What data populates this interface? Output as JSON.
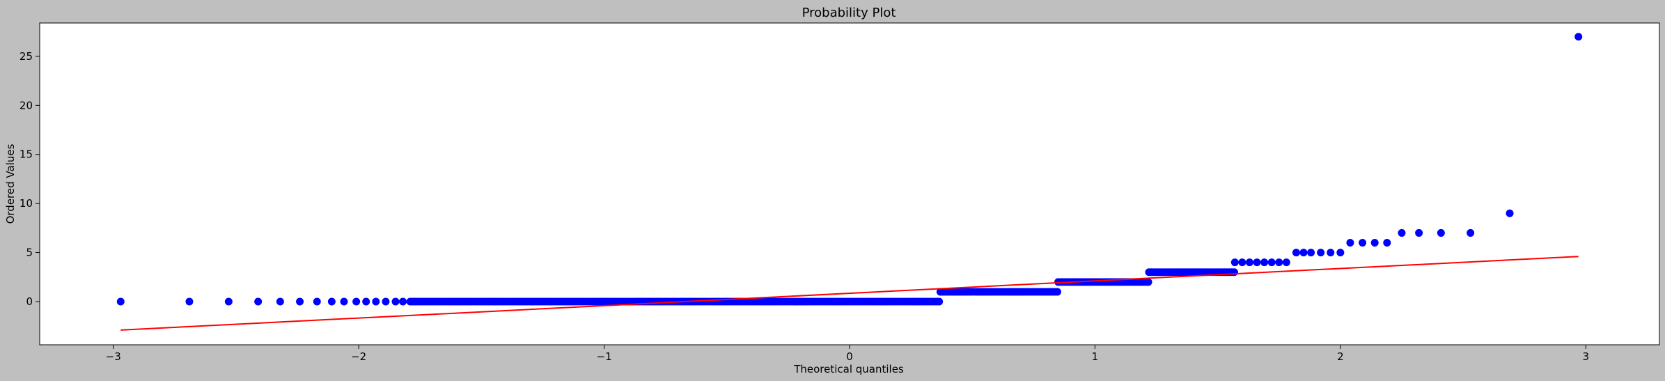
{
  "chart_data": {
    "type": "scatter",
    "title": "Probability Plot",
    "xlabel": "Theoretical quantiles",
    "ylabel": "Ordered Values",
    "xlim": [
      -3.3,
      3.3
    ],
    "ylim": [
      -4.4,
      28.4
    ],
    "x_ticks": [
      -3,
      -2,
      -1,
      0,
      1,
      2,
      3
    ],
    "y_ticks": [
      0,
      5,
      10,
      15,
      20,
      25
    ],
    "x_tick_labels": [
      "−3",
      "−2",
      "−1",
      "0",
      "1",
      "2",
      "3"
    ],
    "y_tick_labels": [
      "0",
      "5",
      "10",
      "15",
      "20",
      "25"
    ],
    "grid": false,
    "colors": {
      "points": "#0000ff",
      "fit_line": "#ff0000",
      "background": "#bfbfbf",
      "plot_area": "#ffffff"
    },
    "point_groups": [
      {
        "value": 0,
        "x": [
          -2.97,
          -2.69,
          -2.53,
          -2.41,
          -2.32,
          -2.24,
          -2.17,
          -2.11,
          -2.06,
          -2.01,
          -1.97,
          -1.93,
          -1.89,
          -1.85,
          -1.82
        ],
        "dense_x_range": [
          -1.79,
          0.37
        ]
      },
      {
        "value": 1,
        "x": [],
        "dense_x_range": [
          0.37,
          0.85
        ]
      },
      {
        "value": 2,
        "x": [],
        "dense_x_range": [
          0.85,
          1.22
        ]
      },
      {
        "value": 3,
        "x": [],
        "dense_x_range": [
          1.22,
          1.57
        ]
      },
      {
        "value": 4,
        "x": [
          1.57,
          1.6,
          1.63,
          1.66,
          1.69,
          1.72,
          1.75,
          1.78
        ],
        "dense_x_range": null
      },
      {
        "value": 5,
        "x": [
          1.82,
          1.85,
          1.88,
          1.92,
          1.96,
          2.0
        ],
        "dense_x_range": null
      },
      {
        "value": 6,
        "x": [
          2.04,
          2.09,
          2.14,
          2.19
        ],
        "dense_x_range": null
      },
      {
        "value": 7,
        "x": [
          2.25,
          2.32,
          2.41,
          2.53
        ],
        "dense_x_range": null
      },
      {
        "value": 9,
        "x": [
          2.69
        ],
        "dense_x_range": null
      },
      {
        "value": 27,
        "x": [
          2.97
        ],
        "dense_x_range": null
      }
    ],
    "fit_line": {
      "x": [
        -2.97,
        2.97
      ],
      "y": [
        -2.9,
        4.6
      ]
    }
  }
}
